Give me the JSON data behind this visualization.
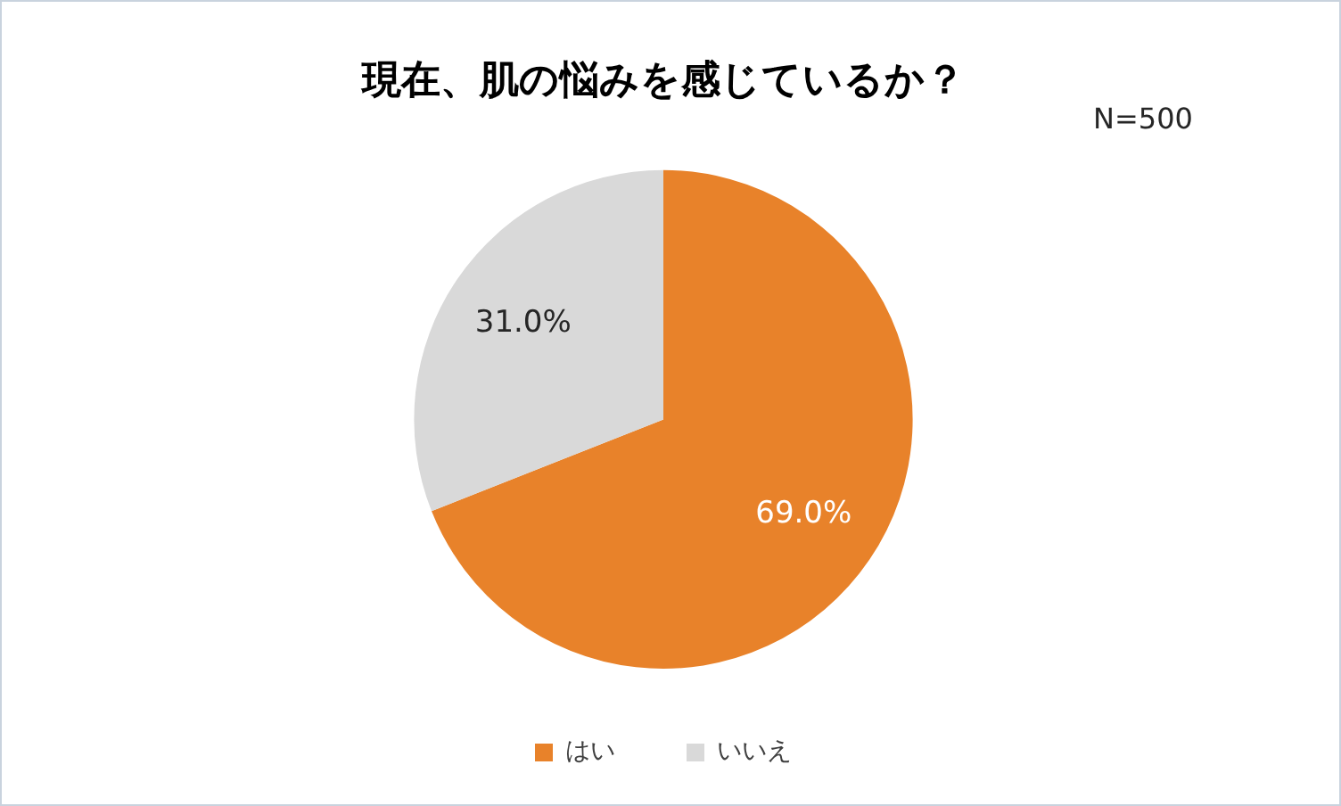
{
  "chart_data": {
    "type": "pie",
    "title": "現在、肌の悩みを感じているか？",
    "annotations": [
      "N=500"
    ],
    "categories": [
      "はい",
      "いいえ"
    ],
    "values": [
      69.0,
      31.0
    ],
    "colors": [
      "#e8822a",
      "#d9d9d9"
    ],
    "value_labels": [
      "69.0%",
      "31.0%"
    ],
    "legend": "bottom"
  }
}
